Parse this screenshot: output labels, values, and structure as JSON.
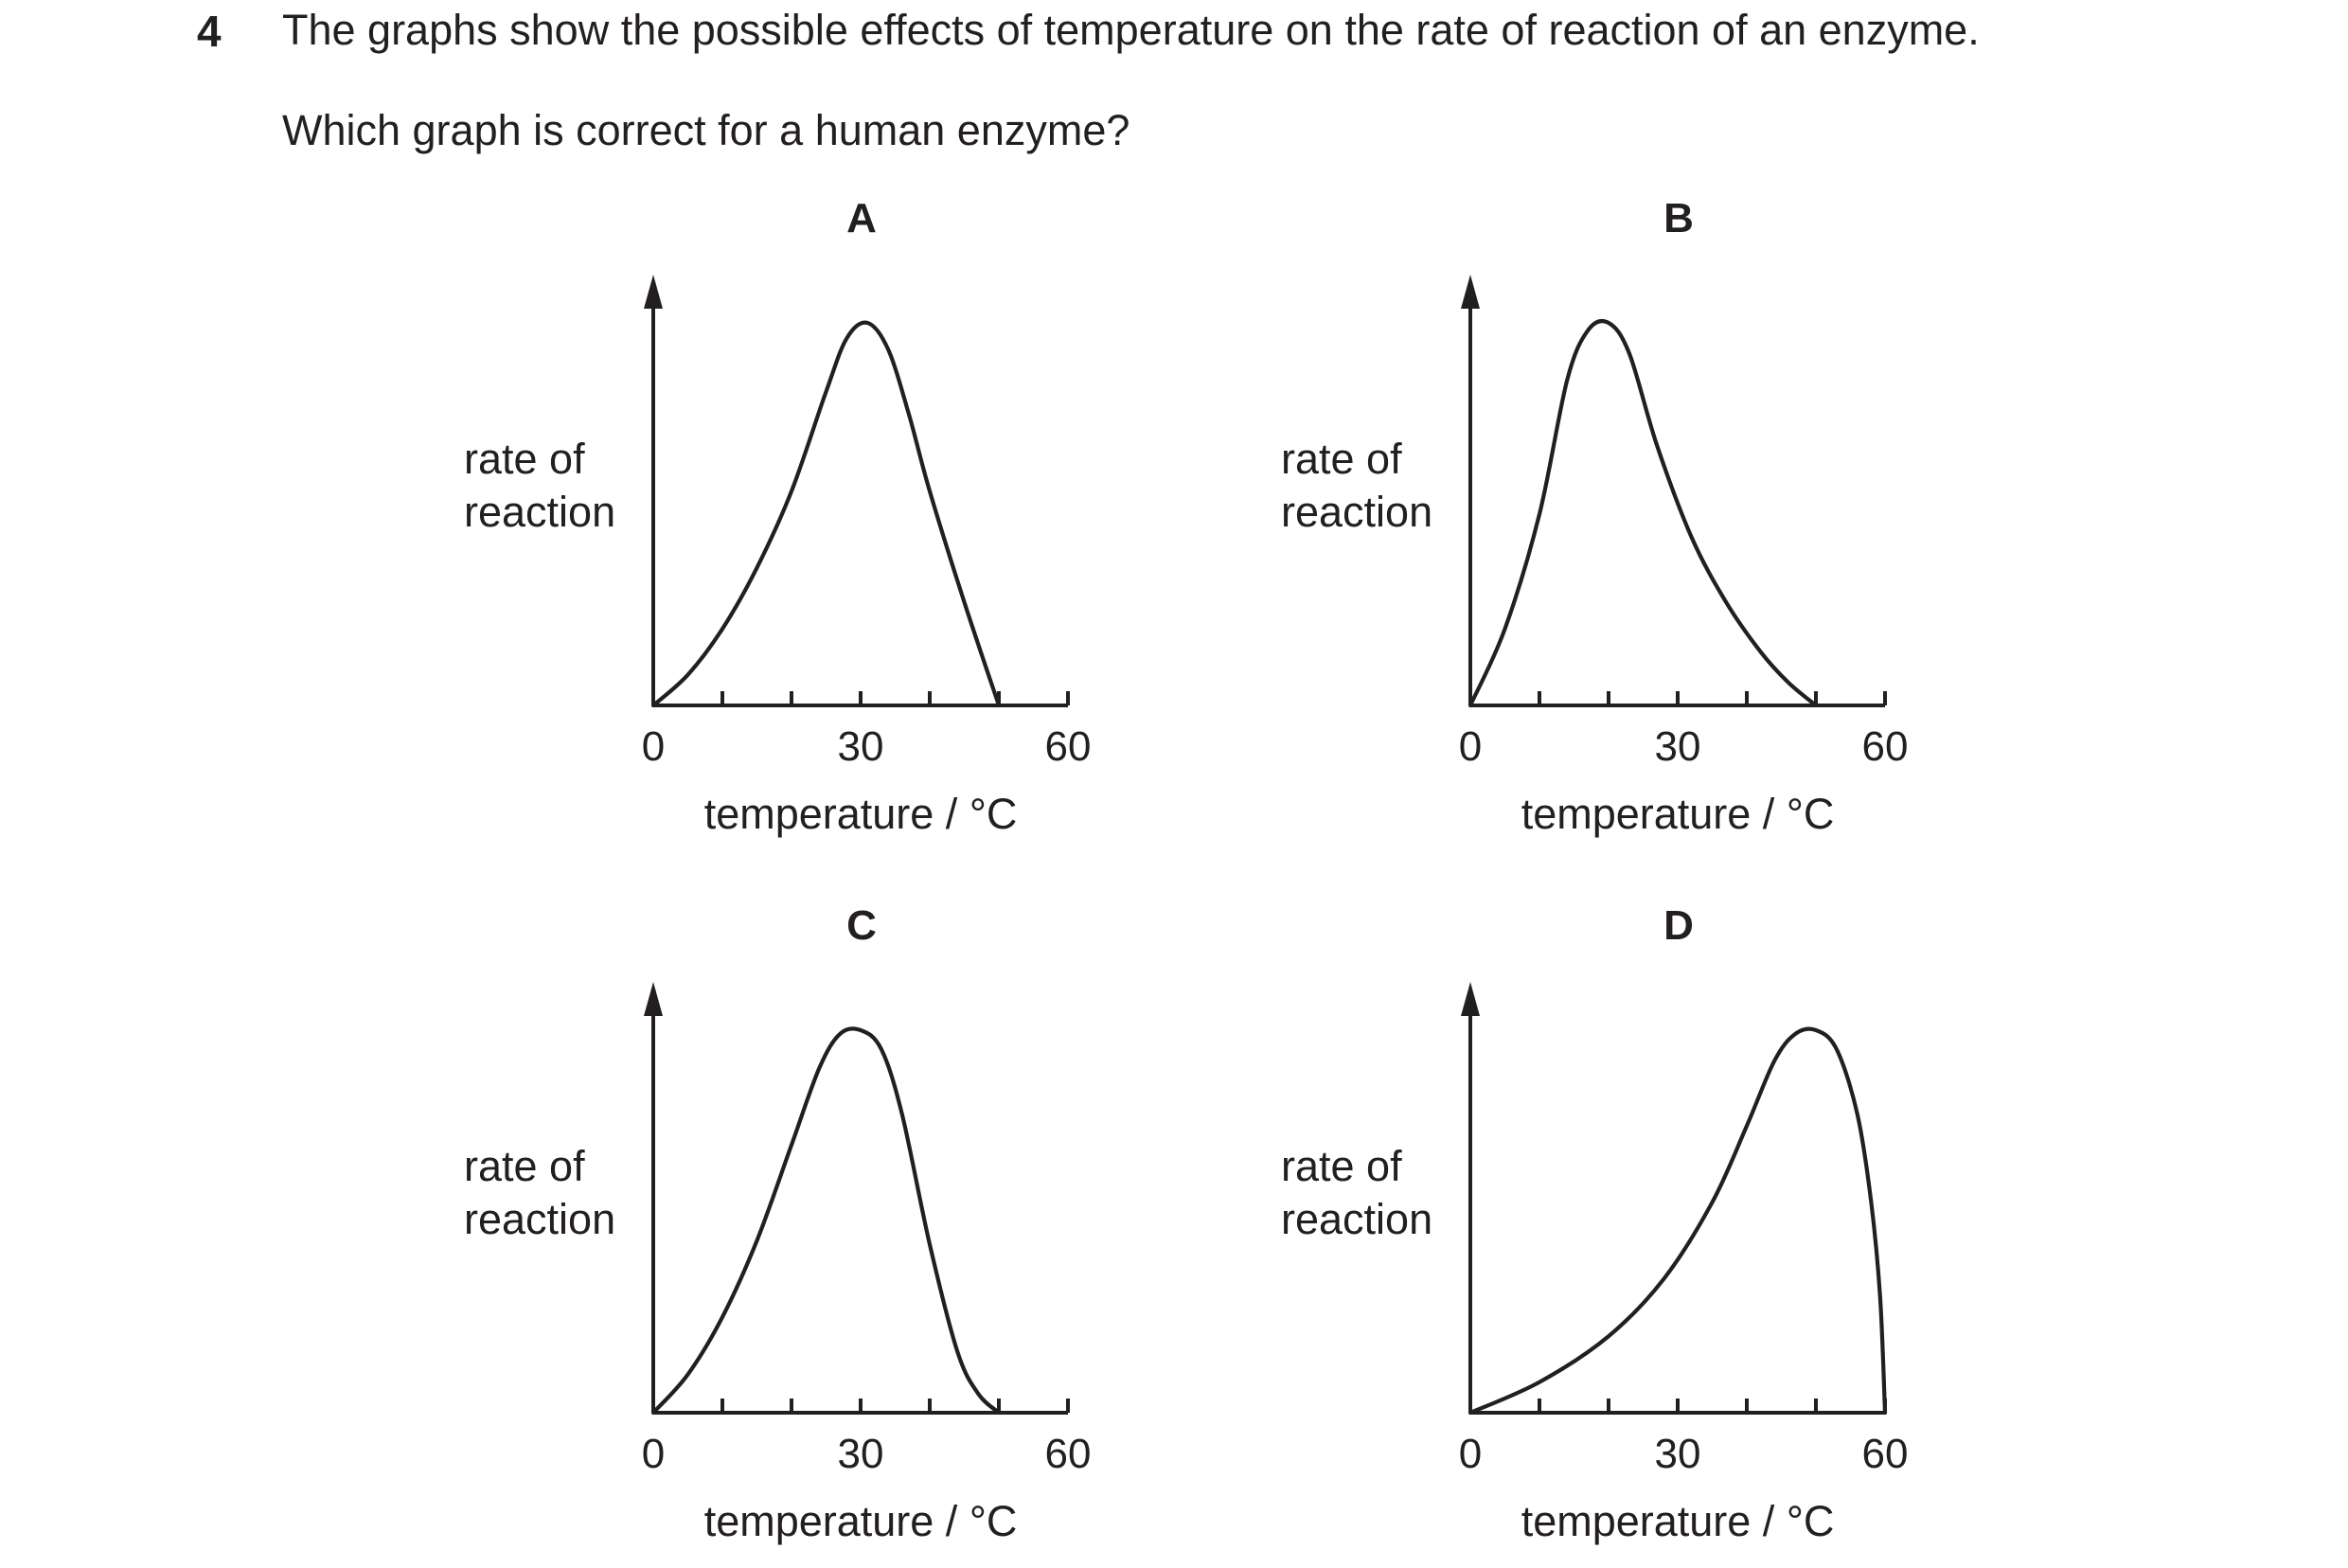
{
  "question": {
    "number": "4",
    "text": "The graphs show the possible effects of temperature on the rate of reaction of an enzyme.",
    "prompt": "Which graph is correct for a human enzyme?"
  },
  "chart_data": [
    {
      "type": "line",
      "panel": "A",
      "ylabel": [
        "rate of",
        "reaction"
      ],
      "xlabel": "temperature / °C",
      "xlim": [
        0,
        60
      ],
      "ylim": [
        0,
        1.15
      ],
      "x_ticks": [
        0,
        10,
        20,
        30,
        40,
        50,
        60
      ],
      "x_tick_labels": [
        {
          "x": 0,
          "label": "0"
        },
        {
          "x": 30,
          "label": "30"
        },
        {
          "x": 60,
          "label": "60"
        }
      ],
      "series": [
        {
          "points": [
            [
              0,
              0
            ],
            [
              5,
              0.08
            ],
            [
              10,
              0.2
            ],
            [
              15,
              0.36
            ],
            [
              20,
              0.56
            ],
            [
              25,
              0.82
            ],
            [
              28,
              0.96
            ],
            [
              31,
              1.0
            ],
            [
              34,
              0.93
            ],
            [
              37,
              0.76
            ],
            [
              40,
              0.56
            ],
            [
              45,
              0.27
            ],
            [
              50,
              0
            ]
          ]
        }
      ]
    },
    {
      "type": "line",
      "panel": "B",
      "ylabel": [
        "rate of",
        "reaction"
      ],
      "xlabel": "temperature / °C",
      "xlim": [
        0,
        60
      ],
      "ylim": [
        0,
        1.15
      ],
      "x_ticks": [
        0,
        10,
        20,
        30,
        40,
        50,
        60
      ],
      "x_tick_labels": [
        {
          "x": 0,
          "label": "0"
        },
        {
          "x": 30,
          "label": "30"
        },
        {
          "x": 60,
          "label": "60"
        }
      ],
      "series": [
        {
          "points": [
            [
              0,
              0
            ],
            [
              5,
              0.2
            ],
            [
              10,
              0.5
            ],
            [
              14,
              0.85
            ],
            [
              17,
              0.98
            ],
            [
              20,
              1.0
            ],
            [
              23,
              0.92
            ],
            [
              27,
              0.68
            ],
            [
              32,
              0.44
            ],
            [
              37,
              0.27
            ],
            [
              42,
              0.14
            ],
            [
              46,
              0.06
            ],
            [
              50,
              0
            ]
          ]
        }
      ]
    },
    {
      "type": "line",
      "panel": "C",
      "ylabel": [
        "rate of",
        "reaction"
      ],
      "xlabel": "temperature / °C",
      "xlim": [
        0,
        60
      ],
      "ylim": [
        0,
        1.15
      ],
      "x_ticks": [
        0,
        10,
        20,
        30,
        40,
        50,
        60
      ],
      "x_tick_labels": [
        {
          "x": 0,
          "label": "0"
        },
        {
          "x": 30,
          "label": "30"
        },
        {
          "x": 60,
          "label": "60"
        }
      ],
      "series": [
        {
          "points": [
            [
              0,
              0
            ],
            [
              5,
              0.1
            ],
            [
              10,
              0.25
            ],
            [
              15,
              0.45
            ],
            [
              20,
              0.7
            ],
            [
              24,
              0.9
            ],
            [
              27,
              0.99
            ],
            [
              30,
              1.0
            ],
            [
              33,
              0.95
            ],
            [
              36,
              0.78
            ],
            [
              40,
              0.44
            ],
            [
              44,
              0.16
            ],
            [
              47,
              0.05
            ],
            [
              50,
              0
            ]
          ]
        }
      ]
    },
    {
      "type": "line",
      "panel": "D",
      "ylabel": [
        "rate of",
        "reaction"
      ],
      "xlabel": "temperature / °C",
      "xlim": [
        0,
        60
      ],
      "ylim": [
        0,
        1.15
      ],
      "x_ticks": [
        0,
        10,
        20,
        30,
        40,
        50,
        60
      ],
      "x_tick_labels": [
        {
          "x": 0,
          "label": "0"
        },
        {
          "x": 30,
          "label": "30"
        },
        {
          "x": 60,
          "label": "60"
        }
      ],
      "series": [
        {
          "points": [
            [
              0,
              0
            ],
            [
              10,
              0.08
            ],
            [
              20,
              0.2
            ],
            [
              28,
              0.35
            ],
            [
              35,
              0.55
            ],
            [
              40,
              0.75
            ],
            [
              44,
              0.92
            ],
            [
              47,
              0.99
            ],
            [
              50,
              1.0
            ],
            [
              53,
              0.95
            ],
            [
              56,
              0.78
            ],
            [
              58,
              0.55
            ],
            [
              59.3,
              0.3
            ],
            [
              60,
              0
            ]
          ]
        }
      ]
    }
  ]
}
